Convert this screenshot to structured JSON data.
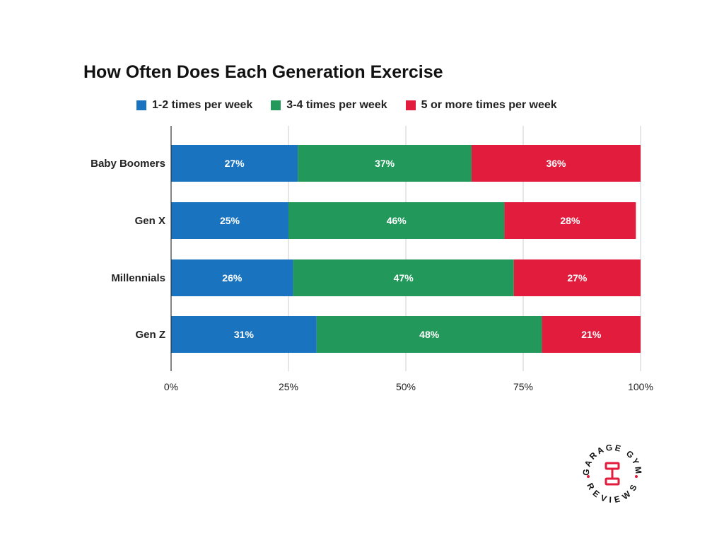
{
  "chart_data": {
    "type": "bar",
    "orientation": "horizontal",
    "stacked": true,
    "title": "How Often Does Each Generation Exercise",
    "categories": [
      "Baby Boomers",
      "Gen X",
      "Millennials",
      "Gen Z"
    ],
    "series": [
      {
        "name": "1-2 times per week",
        "color": "#1a73be",
        "values": [
          27,
          25,
          26,
          31
        ],
        "labels": [
          "27%",
          "25%",
          "26%",
          "31%"
        ]
      },
      {
        "name": "3-4 times per week",
        "color": "#22995a",
        "values": [
          37,
          46,
          47,
          48
        ],
        "labels": [
          "37%",
          "46%",
          "47%",
          "48%"
        ]
      },
      {
        "name": "5 or more times per week",
        "color": "#e21c3c",
        "values": [
          36,
          28,
          27,
          21
        ],
        "labels": [
          "36%",
          "28%",
          "27%",
          "21%"
        ]
      }
    ],
    "xlim": [
      0,
      100
    ],
    "xticks": [
      0,
      25,
      50,
      75,
      100
    ],
    "xtick_labels": [
      "0%",
      "25%",
      "50%",
      "75%",
      "100%"
    ],
    "xlabel": "",
    "ylabel": "",
    "grid": true,
    "legend_position": "top"
  },
  "logo": {
    "top_text": "GARAGE GYM",
    "bottom_text": "REVIEWS",
    "accent_color": "#e21c3c"
  }
}
